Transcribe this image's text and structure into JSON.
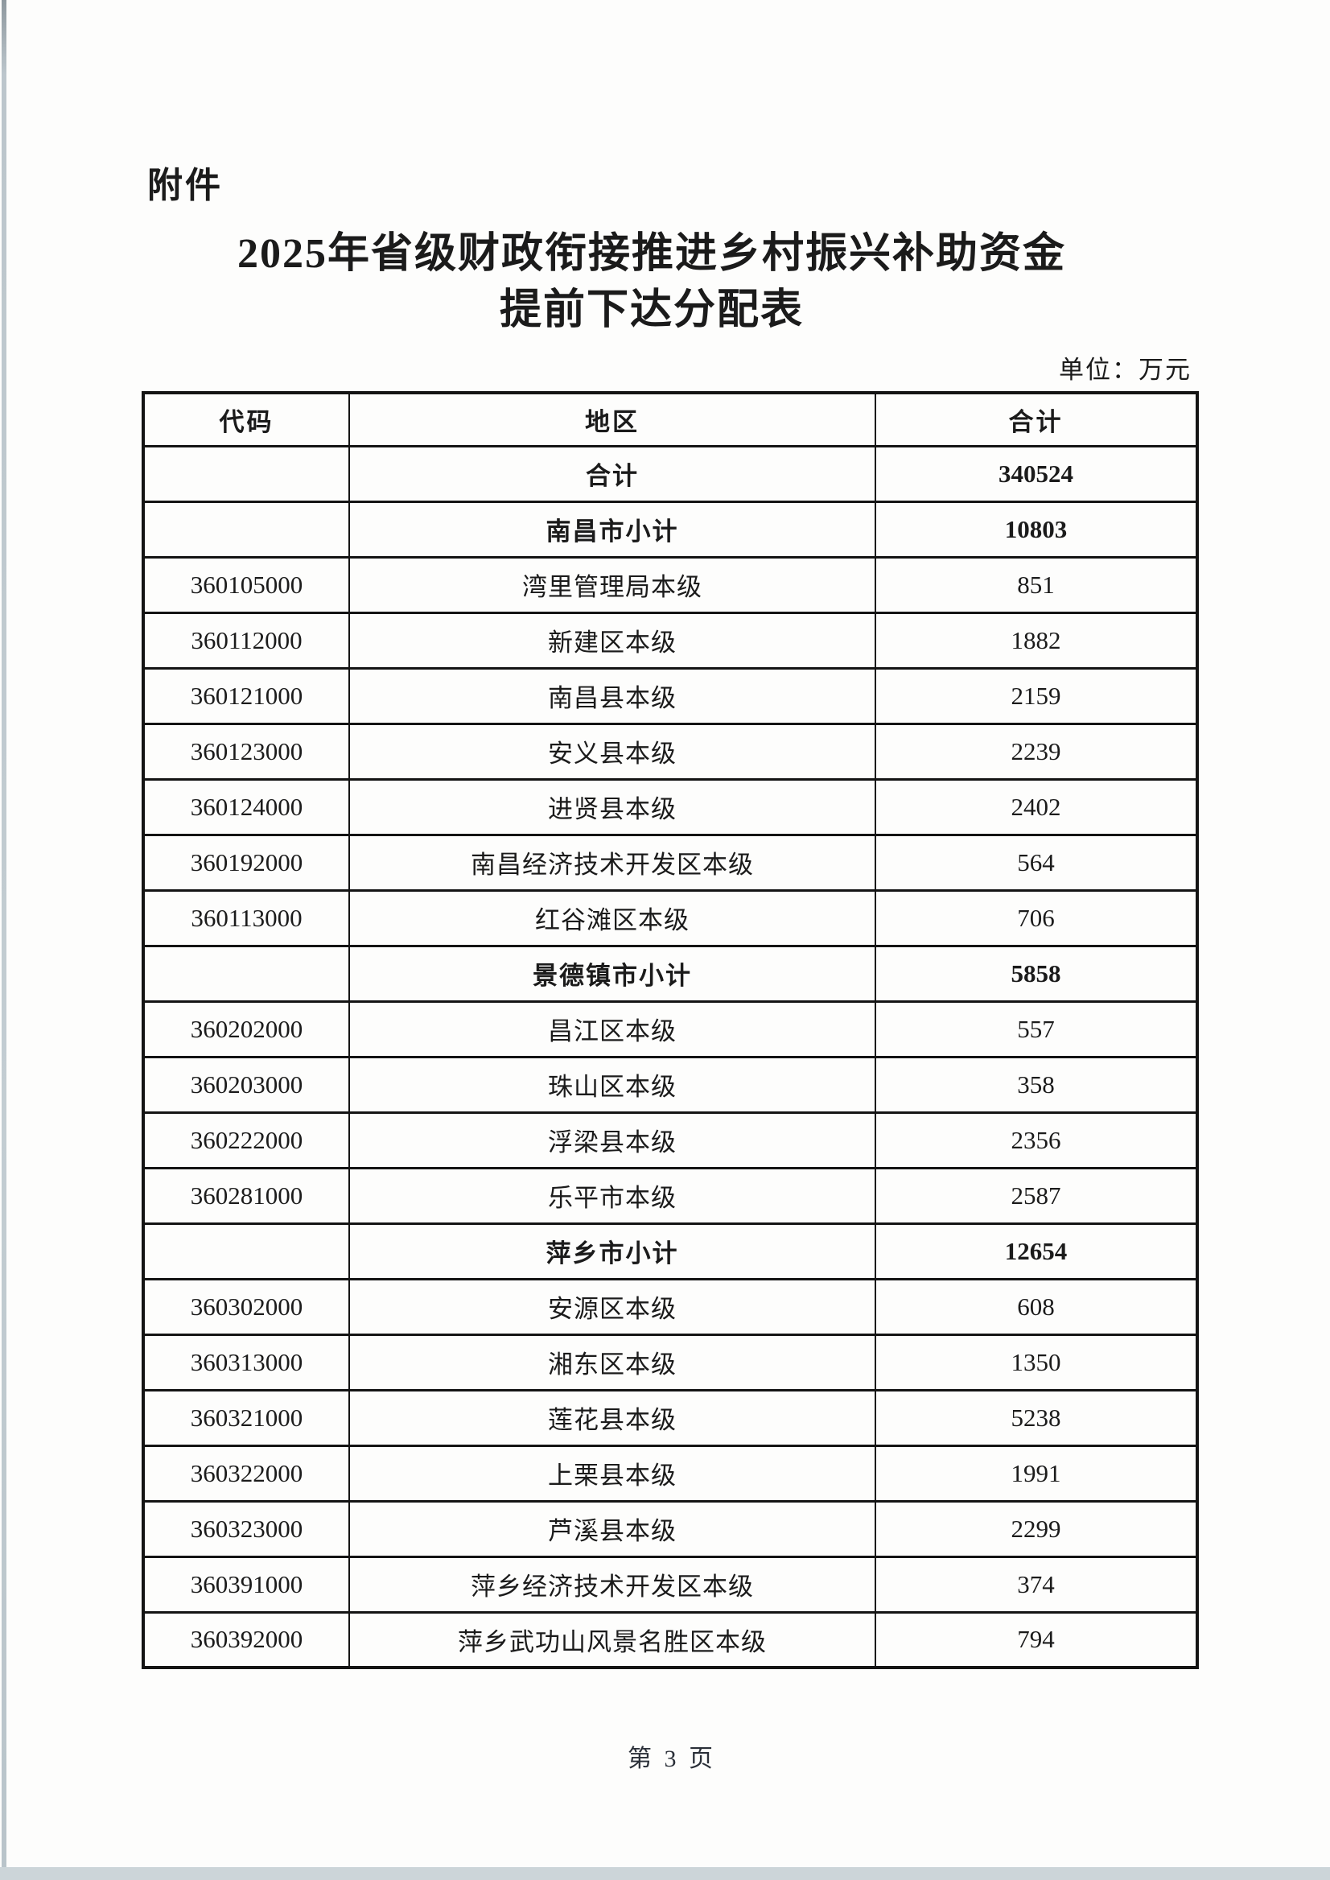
{
  "page": {
    "attachment_label": "附件",
    "title_line1": "2025年省级财政衔接推进乡村振兴补助资金",
    "title_line2": "提前下达分配表",
    "unit_note": "单位：万元",
    "footer": "第 3 页"
  },
  "table": {
    "columns": [
      "代码",
      "地区",
      "合计"
    ],
    "rows": [
      {
        "code": "",
        "region": "合计",
        "total": "340524",
        "style": "total"
      },
      {
        "code": "",
        "region": "南昌市小计",
        "total": "10803",
        "style": "subtotal"
      },
      {
        "code": "360105000",
        "region": "湾里管理局本级",
        "total": "851",
        "style": "normal"
      },
      {
        "code": "360112000",
        "region": "新建区本级",
        "total": "1882",
        "style": "normal"
      },
      {
        "code": "360121000",
        "region": "南昌县本级",
        "total": "2159",
        "style": "normal"
      },
      {
        "code": "360123000",
        "region": "安义县本级",
        "total": "2239",
        "style": "normal"
      },
      {
        "code": "360124000",
        "region": "进贤县本级",
        "total": "2402",
        "style": "normal"
      },
      {
        "code": "360192000",
        "region": "南昌经济技术开发区本级",
        "total": "564",
        "style": "normal"
      },
      {
        "code": "360113000",
        "region": "红谷滩区本级",
        "total": "706",
        "style": "normal"
      },
      {
        "code": "",
        "region": "景德镇市小计",
        "total": "5858",
        "style": "subtotal"
      },
      {
        "code": "360202000",
        "region": "昌江区本级",
        "total": "557",
        "style": "normal"
      },
      {
        "code": "360203000",
        "region": "珠山区本级",
        "total": "358",
        "style": "normal"
      },
      {
        "code": "360222000",
        "region": "浮梁县本级",
        "total": "2356",
        "style": "normal"
      },
      {
        "code": "360281000",
        "region": "乐平市本级",
        "total": "2587",
        "style": "normal"
      },
      {
        "code": "",
        "region": "萍乡市小计",
        "total": "12654",
        "style": "subtotal"
      },
      {
        "code": "360302000",
        "region": "安源区本级",
        "total": "608",
        "style": "normal"
      },
      {
        "code": "360313000",
        "region": "湘东区本级",
        "total": "1350",
        "style": "normal"
      },
      {
        "code": "360321000",
        "region": "莲花县本级",
        "total": "5238",
        "style": "normal"
      },
      {
        "code": "360322000",
        "region": "上栗县本级",
        "total": "1991",
        "style": "normal"
      },
      {
        "code": "360323000",
        "region": "芦溪县本级",
        "total": "2299",
        "style": "normal"
      },
      {
        "code": "360391000",
        "region": "萍乡经济技术开发区本级",
        "total": "374",
        "style": "normal"
      },
      {
        "code": "360392000",
        "region": "萍乡武功山风景名胜区本级",
        "total": "794",
        "style": "normal"
      }
    ]
  }
}
